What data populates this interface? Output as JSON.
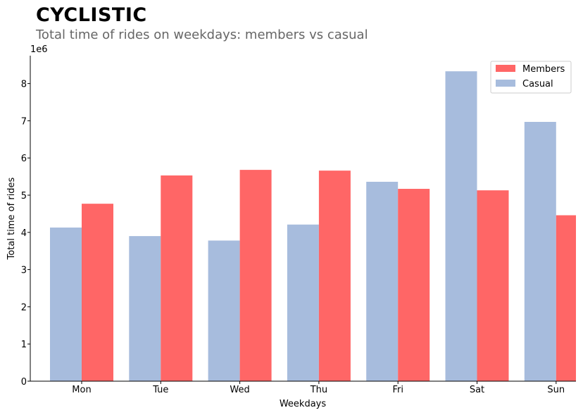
{
  "header": {
    "title": "CYCLISTIC",
    "subtitle": "Total time of rides on weekdays: members vs casual"
  },
  "chart_data": {
    "type": "bar",
    "xlabel": "Weekdays",
    "ylabel": "Total time of rides",
    "scale_label": "1e6",
    "categories": [
      "Mon",
      "Tue",
      "Wed",
      "Thu",
      "Fri",
      "Sat",
      "Sun"
    ],
    "y_ticks": [
      "0",
      "1",
      "2",
      "3",
      "4",
      "5",
      "6",
      "7",
      "8"
    ],
    "ylim": [
      0,
      8.75
    ],
    "grid": false,
    "legend_position": "top-right",
    "series": [
      {
        "name": "Casual",
        "color": "#a7bcdd",
        "values": [
          4.13,
          3.9,
          3.78,
          4.21,
          5.36,
          8.33,
          6.97
        ]
      },
      {
        "name": "Members",
        "color": "#ff6666",
        "values": [
          4.77,
          5.53,
          5.68,
          5.66,
          5.17,
          5.13,
          4.46
        ]
      }
    ],
    "legend": [
      {
        "name": "Members",
        "color": "#ff6666"
      },
      {
        "name": "Casual",
        "color": "#a7bcdd"
      }
    ]
  }
}
